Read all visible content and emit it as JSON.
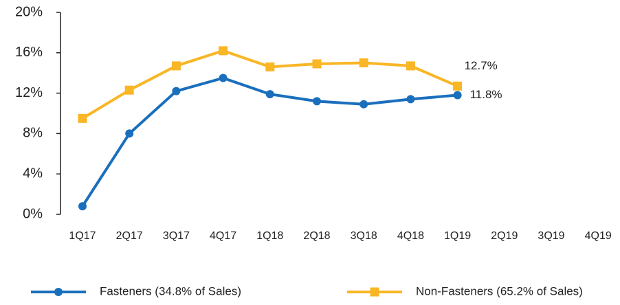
{
  "chart_data": {
    "type": "line",
    "categories": [
      "1Q17",
      "2Q17",
      "3Q17",
      "4Q17",
      "1Q18",
      "2Q18",
      "3Q18",
      "4Q18",
      "1Q19",
      "2Q19",
      "3Q19",
      "4Q19"
    ],
    "series": [
      {
        "name": "Fasteners (34.8% of Sales)",
        "color": "#1a6fbd",
        "marker": "circle",
        "values": [
          0.8,
          8.0,
          12.2,
          13.5,
          11.9,
          11.2,
          10.9,
          11.4,
          11.8,
          null,
          null,
          null
        ],
        "value_labels": [
          null,
          null,
          null,
          null,
          null,
          null,
          null,
          null,
          "11.8%",
          null,
          null,
          null
        ]
      },
      {
        "name": "Non-Fasteners (65.2% of Sales)",
        "color": "#f9b625",
        "marker": "square",
        "values": [
          9.5,
          12.3,
          14.7,
          16.2,
          14.6,
          14.9,
          15.0,
          14.7,
          12.7,
          null,
          null,
          null
        ],
        "value_labels": [
          null,
          null,
          null,
          null,
          null,
          null,
          null,
          null,
          "12.7%",
          null,
          null,
          null
        ]
      }
    ],
    "ylim": [
      0,
      20
    ],
    "yticks": [
      {
        "value": 0,
        "label": "0%"
      },
      {
        "value": 4,
        "label": "4%"
      },
      {
        "value": 8,
        "label": "8%"
      },
      {
        "value": 12,
        "label": "12%"
      },
      {
        "value": 16,
        "label": "16%"
      },
      {
        "value": 20,
        "label": "20%"
      }
    ],
    "legend": "bottom"
  }
}
